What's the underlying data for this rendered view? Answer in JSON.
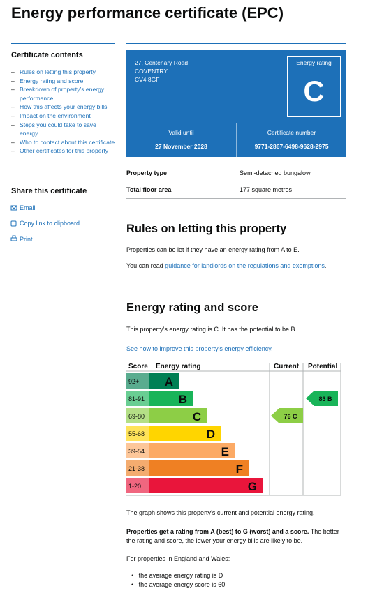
{
  "header": {
    "title": "Energy performance certificate (EPC)"
  },
  "sidebar": {
    "contents_heading": "Certificate contents",
    "contents": [
      "Rules on letting this property",
      "Energy rating and score",
      "Breakdown of property’s energy performance",
      "How this affects your energy bills",
      "Impact on the environment",
      "Steps you could take to save energy",
      "Who to contact about this certificate",
      "Other certificates for this property"
    ],
    "share_heading": "Share this certificate",
    "share": [
      "Email",
      "Copy link to clipboard",
      "Print"
    ]
  },
  "summary": {
    "address": [
      "27, Centenary Road",
      "COVENTRY",
      "CV4 8GF"
    ],
    "rating_label": "Energy rating",
    "rating": "C",
    "valid_until_label": "Valid until",
    "valid_until": "27 November 2028",
    "certificate_number_label": "Certificate number",
    "certificate_number": "9771-2867-6498-9628-2975"
  },
  "property": {
    "rows": [
      [
        "Property type",
        "Semi-detached bungalow"
      ],
      [
        "Total floor area",
        "177 square metres"
      ]
    ]
  },
  "letting": {
    "heading": "Rules on letting this property",
    "p1": "Properties can be let if they have an energy rating from A to E.",
    "p2_before": "You can read ",
    "p2_link": "guidance for landlords on the regulations and exemptions",
    "p2_after": "."
  },
  "rating": {
    "heading": "Energy rating and score",
    "p1": "This property’s energy rating is C. It has the potential to be B.",
    "link": "See how to improve this property’s energy efficiency.",
    "graph": {
      "headers": [
        "Score",
        "Energy rating",
        "Current",
        "Potential"
      ],
      "bands": [
        {
          "score": "92+",
          "letter": "A",
          "color": "#008054"
        },
        {
          "score": "81-91",
          "letter": "B",
          "color": "#19b459"
        },
        {
          "score": "69-80",
          "letter": "C",
          "color": "#8dce46"
        },
        {
          "score": "55-68",
          "letter": "D",
          "color": "#ffd500"
        },
        {
          "score": "39-54",
          "letter": "E",
          "color": "#fcaa65"
        },
        {
          "score": "21-38",
          "letter": "F",
          "color": "#ef8023"
        },
        {
          "score": "1-20",
          "letter": "G",
          "color": "#e9153b"
        }
      ],
      "current": {
        "score": 76,
        "letter": "C"
      },
      "potential": {
        "score": 83,
        "letter": "B"
      }
    },
    "caption": "The graph shows this property’s current and potential energy rating.",
    "p_bold": "Properties get a rating from A (best) to G (worst) and a score.",
    "p_rest": " The better the rating and score, the lower your energy bills are likely to be.",
    "p_region": "For properties in England and Wales:",
    "bullets": [
      "the average energy rating is D",
      "the average energy score is 60"
    ]
  }
}
